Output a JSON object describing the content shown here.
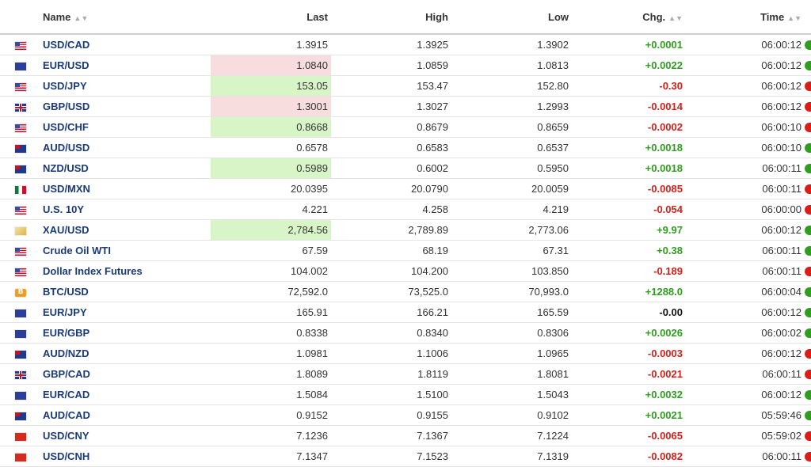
{
  "headers": {
    "name": "Name",
    "last": "Last",
    "high": "High",
    "low": "Low",
    "chg": "Chg.",
    "time": "Time",
    "sort_icon": "sort-arrows-icon"
  },
  "colors": {
    "link": "#1a3a7a",
    "up": "#2f9e1f",
    "down": "#d91e18",
    "flash_up": "#d8f5c8",
    "flash_down": "#f7dddd"
  },
  "rows": [
    {
      "flag": "us-flag-icon",
      "name": "USD/CAD",
      "last": "1.3915",
      "high": "1.3925",
      "low": "1.3902",
      "chg": "+0.0001",
      "time": "06:00:12",
      "flash": "",
      "dir": "up"
    },
    {
      "flag": "eu-flag-icon",
      "name": "EUR/USD",
      "last": "1.0840",
      "high": "1.0859",
      "low": "1.0813",
      "chg": "+0.0022",
      "time": "06:00:12",
      "flash": "down",
      "dir": "up"
    },
    {
      "flag": "us-flag-icon",
      "name": "USD/JPY",
      "last": "153.05",
      "high": "153.47",
      "low": "152.80",
      "chg": "-0.30",
      "time": "06:00:12",
      "flash": "up",
      "dir": "down"
    },
    {
      "flag": "gb-flag-icon",
      "name": "GBP/USD",
      "last": "1.3001",
      "high": "1.3027",
      "low": "1.2993",
      "chg": "-0.0014",
      "time": "06:00:12",
      "flash": "down",
      "dir": "down"
    },
    {
      "flag": "us-flag-icon",
      "name": "USD/CHF",
      "last": "0.8668",
      "high": "0.8679",
      "low": "0.8659",
      "chg": "-0.0002",
      "time": "06:00:10",
      "flash": "up",
      "dir": "down"
    },
    {
      "flag": "au-flag-icon",
      "name": "AUD/USD",
      "last": "0.6578",
      "high": "0.6583",
      "low": "0.6537",
      "chg": "+0.0018",
      "time": "06:00:10",
      "flash": "",
      "dir": "up"
    },
    {
      "flag": "nz-flag-icon",
      "name": "NZD/USD",
      "last": "0.5989",
      "high": "0.6002",
      "low": "0.5950",
      "chg": "+0.0018",
      "time": "06:00:11",
      "flash": "up",
      "dir": "up"
    },
    {
      "flag": "mx-flag-icon",
      "name": "USD/MXN",
      "last": "20.0395",
      "high": "20.0790",
      "low": "20.0059",
      "chg": "-0.0085",
      "time": "06:00:11",
      "flash": "",
      "dir": "down"
    },
    {
      "flag": "us-flag-icon",
      "name": "U.S. 10Y",
      "last": "4.221",
      "high": "4.258",
      "low": "4.219",
      "chg": "-0.054",
      "time": "06:00:00",
      "flash": "",
      "dir": "down"
    },
    {
      "flag": "gold-icon",
      "name": "XAU/USD",
      "last": "2,784.56",
      "high": "2,789.89",
      "low": "2,773.06",
      "chg": "+9.97",
      "time": "06:00:12",
      "flash": "up",
      "dir": "up"
    },
    {
      "flag": "us-flag-icon",
      "name": "Crude Oil WTI",
      "last": "67.59",
      "high": "68.19",
      "low": "67.31",
      "chg": "+0.38",
      "time": "06:00:11",
      "flash": "",
      "dir": "up"
    },
    {
      "flag": "us-flag-icon",
      "name": "Dollar Index Futures",
      "last": "104.002",
      "high": "104.200",
      "low": "103.850",
      "chg": "-0.189",
      "time": "06:00:11",
      "flash": "",
      "dir": "down"
    },
    {
      "flag": "bitcoin-icon",
      "name": "BTC/USD",
      "last": "72,592.0",
      "high": "73,525.0",
      "low": "70,993.0",
      "chg": "+1288.0",
      "time": "06:00:04",
      "flash": "",
      "dir": "up"
    },
    {
      "flag": "eu-flag-icon",
      "name": "EUR/JPY",
      "last": "165.91",
      "high": "166.21",
      "low": "165.59",
      "chg": "-0.00",
      "time": "06:00:12",
      "flash": "",
      "dir": "flat"
    },
    {
      "flag": "eu-flag-icon",
      "name": "EUR/GBP",
      "last": "0.8338",
      "high": "0.8340",
      "low": "0.8306",
      "chg": "+0.0026",
      "time": "06:00:02",
      "flash": "",
      "dir": "up"
    },
    {
      "flag": "au-flag-icon",
      "name": "AUD/NZD",
      "last": "1.0981",
      "high": "1.1006",
      "low": "1.0965",
      "chg": "-0.0003",
      "time": "06:00:12",
      "flash": "",
      "dir": "down"
    },
    {
      "flag": "gb-flag-icon",
      "name": "GBP/CAD",
      "last": "1.8089",
      "high": "1.8119",
      "low": "1.8081",
      "chg": "-0.0021",
      "time": "06:00:11",
      "flash": "",
      "dir": "down"
    },
    {
      "flag": "eu-flag-icon",
      "name": "EUR/CAD",
      "last": "1.5084",
      "high": "1.5100",
      "low": "1.5043",
      "chg": "+0.0032",
      "time": "06:00:12",
      "flash": "",
      "dir": "up"
    },
    {
      "flag": "au-flag-icon",
      "name": "AUD/CAD",
      "last": "0.9152",
      "high": "0.9155",
      "low": "0.9102",
      "chg": "+0.0021",
      "time": "05:59:46",
      "flash": "",
      "dir": "up"
    },
    {
      "flag": "cn-flag-icon",
      "name": "USD/CNY",
      "last": "7.1236",
      "high": "7.1367",
      "low": "7.1224",
      "chg": "-0.0065",
      "time": "05:59:02",
      "flash": "",
      "dir": "down"
    },
    {
      "flag": "cn-flag-icon",
      "name": "USD/CNH",
      "last": "7.1347",
      "high": "7.1523",
      "low": "7.1319",
      "chg": "-0.0082",
      "time": "06:00:11",
      "flash": "",
      "dir": "down"
    }
  ]
}
